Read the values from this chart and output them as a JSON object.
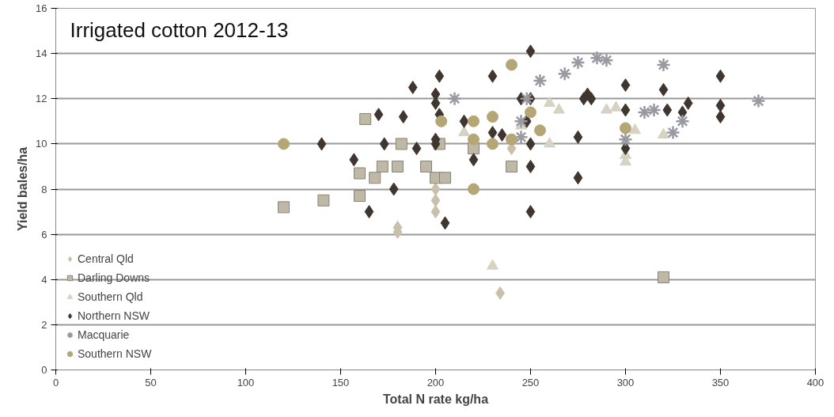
{
  "chart_data": {
    "type": "scatter",
    "title": "Irrigated cotton 2012-13",
    "xlabel": "Total N rate kg/ha",
    "ylabel": "Yield bales/ha",
    "xlim": [
      0,
      400
    ],
    "xticks": [
      0,
      50,
      100,
      150,
      200,
      250,
      300,
      350,
      400
    ],
    "ylim": [
      0,
      16
    ],
    "yticks": [
      0,
      2,
      4,
      6,
      8,
      10,
      12,
      14,
      16
    ],
    "grid": "y",
    "legend": "bottom left",
    "series": [
      {
        "name": "Central Qld",
        "color": "#c9c0ac",
        "marker": "diamond",
        "x": [
          180,
          180,
          200,
          200,
          200,
          234,
          240
        ],
        "values": [
          6.3,
          6.1,
          8.0,
          7.5,
          7.0,
          3.4,
          9.8
        ]
      },
      {
        "name": "Darling Downs",
        "color": "#bfb8a6",
        "marker": "square",
        "x": [
          120,
          141,
          160,
          160,
          163,
          168,
          172,
          180,
          182,
          195,
          200,
          205,
          202,
          240,
          220,
          320
        ],
        "values": [
          7.2,
          7.5,
          7.7,
          8.7,
          11.1,
          8.5,
          9.0,
          9.0,
          10.0,
          9.0,
          8.5,
          8.5,
          10.0,
          9.0,
          9.8,
          4.1
        ]
      },
      {
        "name": "Southern Qld",
        "color": "#d6d2c4",
        "marker": "triangle",
        "x": [
          230,
          260,
          265,
          260,
          295,
          300,
          300,
          305,
          320,
          215,
          245,
          290
        ],
        "values": [
          4.6,
          11.8,
          11.5,
          10.0,
          11.6,
          9.2,
          9.5,
          10.6,
          10.4,
          10.5,
          10.8,
          11.5
        ]
      },
      {
        "name": "Northern NSW",
        "color": "#3f3630",
        "marker": "diamond",
        "x": [
          140,
          157,
          165,
          170,
          173,
          178,
          183,
          188,
          190,
          200,
          202,
          200,
          200,
          202,
          205,
          215,
          220,
          230,
          230,
          235,
          245,
          248,
          250,
          250,
          250,
          250,
          250,
          275,
          275,
          278,
          280,
          282,
          300,
          300,
          300,
          320,
          322,
          330,
          333,
          350,
          350,
          350,
          200
        ],
        "values": [
          10.0,
          9.3,
          7.0,
          11.3,
          10.0,
          8.0,
          11.2,
          12.5,
          9.8,
          12.2,
          13.0,
          11.8,
          10.0,
          11.3,
          6.5,
          11.0,
          9.3,
          13.0,
          10.5,
          10.4,
          12.0,
          11.0,
          14.1,
          12.0,
          10.0,
          9.0,
          7.0,
          8.5,
          10.3,
          12.0,
          12.2,
          12.0,
          12.6,
          11.5,
          9.8,
          12.4,
          11.5,
          11.4,
          11.8,
          13.0,
          11.7,
          11.2,
          10.2
        ]
      },
      {
        "name": "Macquarie",
        "color": "#9a98a0",
        "marker": "cross",
        "x": [
          210,
          245,
          248,
          255,
          268,
          275,
          285,
          290,
          320,
          300,
          310,
          315,
          325,
          330,
          370,
          245
        ],
        "values": [
          12.0,
          11.0,
          12.0,
          12.8,
          13.1,
          13.6,
          13.8,
          13.7,
          13.5,
          10.2,
          11.4,
          11.5,
          10.5,
          11.0,
          11.9,
          10.3
        ]
      },
      {
        "name": "Southern NSW",
        "color": "#b5a775",
        "marker": "circle",
        "x": [
          120,
          203,
          220,
          220,
          220,
          230,
          230,
          240,
          240,
          250,
          255,
          300
        ],
        "values": [
          10.0,
          11.0,
          11.0,
          10.2,
          8.0,
          11.2,
          10.0,
          10.2,
          13.5,
          11.4,
          10.6,
          10.7
        ]
      }
    ]
  }
}
